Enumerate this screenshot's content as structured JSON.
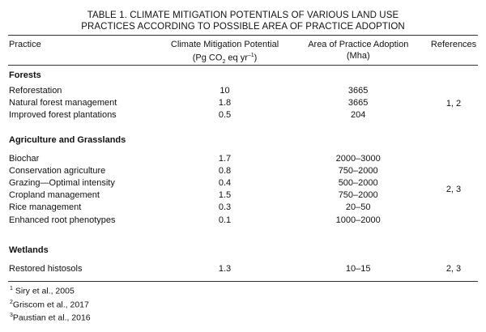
{
  "title": {
    "line1": "TABLE 1. CLIMATE MITIGATION POTENTIALS OF VARIOUS LAND USE",
    "line2": "PRACTICES ACCORDING TO POSSIBLE AREA OF PRACTICE ADOPTION"
  },
  "header": {
    "practice": "Practice",
    "potential_line1": "Climate Mitigation Potential",
    "potential_unit_a": "(Pg CO",
    "potential_unit_sub": "2",
    "potential_unit_b": " eq yr",
    "potential_unit_sup": "–1",
    "potential_unit_c": ")",
    "area_line1": "Area of Practice Adoption",
    "area_line2": "(Mha)",
    "references": "References"
  },
  "sections": [
    {
      "name": "Forests",
      "references": "1, 2",
      "rows": [
        {
          "practice": "Reforestation",
          "potential": "10",
          "area": "3665"
        },
        {
          "practice": "Natural forest management",
          "potential": "1.8",
          "area": "3665"
        },
        {
          "practice": "Improved forest plantations",
          "potential": "0.5",
          "area": "204"
        }
      ]
    },
    {
      "name": "Agriculture and Grasslands",
      "references": "2, 3",
      "rows": [
        {
          "practice": "Biochar",
          "potential": "1.7",
          "area": "2000–3000"
        },
        {
          "practice": "Conservation agriculture",
          "potential": "0.8",
          "area": "750–2000"
        },
        {
          "practice": "Grazing—Optimal intensity",
          "potential": "0.4",
          "area": "500–2000"
        },
        {
          "practice": "Cropland management",
          "potential": "1.5",
          "area": "750–2000"
        },
        {
          "practice": "Rice management",
          "potential": "0.3",
          "area": "20–50"
        },
        {
          "practice": "Enhanced root phenotypes",
          "potential": "0.1",
          "area": "1000–2000"
        }
      ]
    },
    {
      "name": "Wetlands",
      "references": "2, 3",
      "rows": [
        {
          "practice": "Restored histosols",
          "potential": "1.3",
          "area": "10–15"
        }
      ]
    }
  ],
  "footnotes": [
    {
      "mark": "1",
      "text": " Siry et al., 2005"
    },
    {
      "mark": "2",
      "text": "Griscom et al., 2017"
    },
    {
      "mark": "3",
      "text": "Paustian et al., 2016"
    }
  ]
}
